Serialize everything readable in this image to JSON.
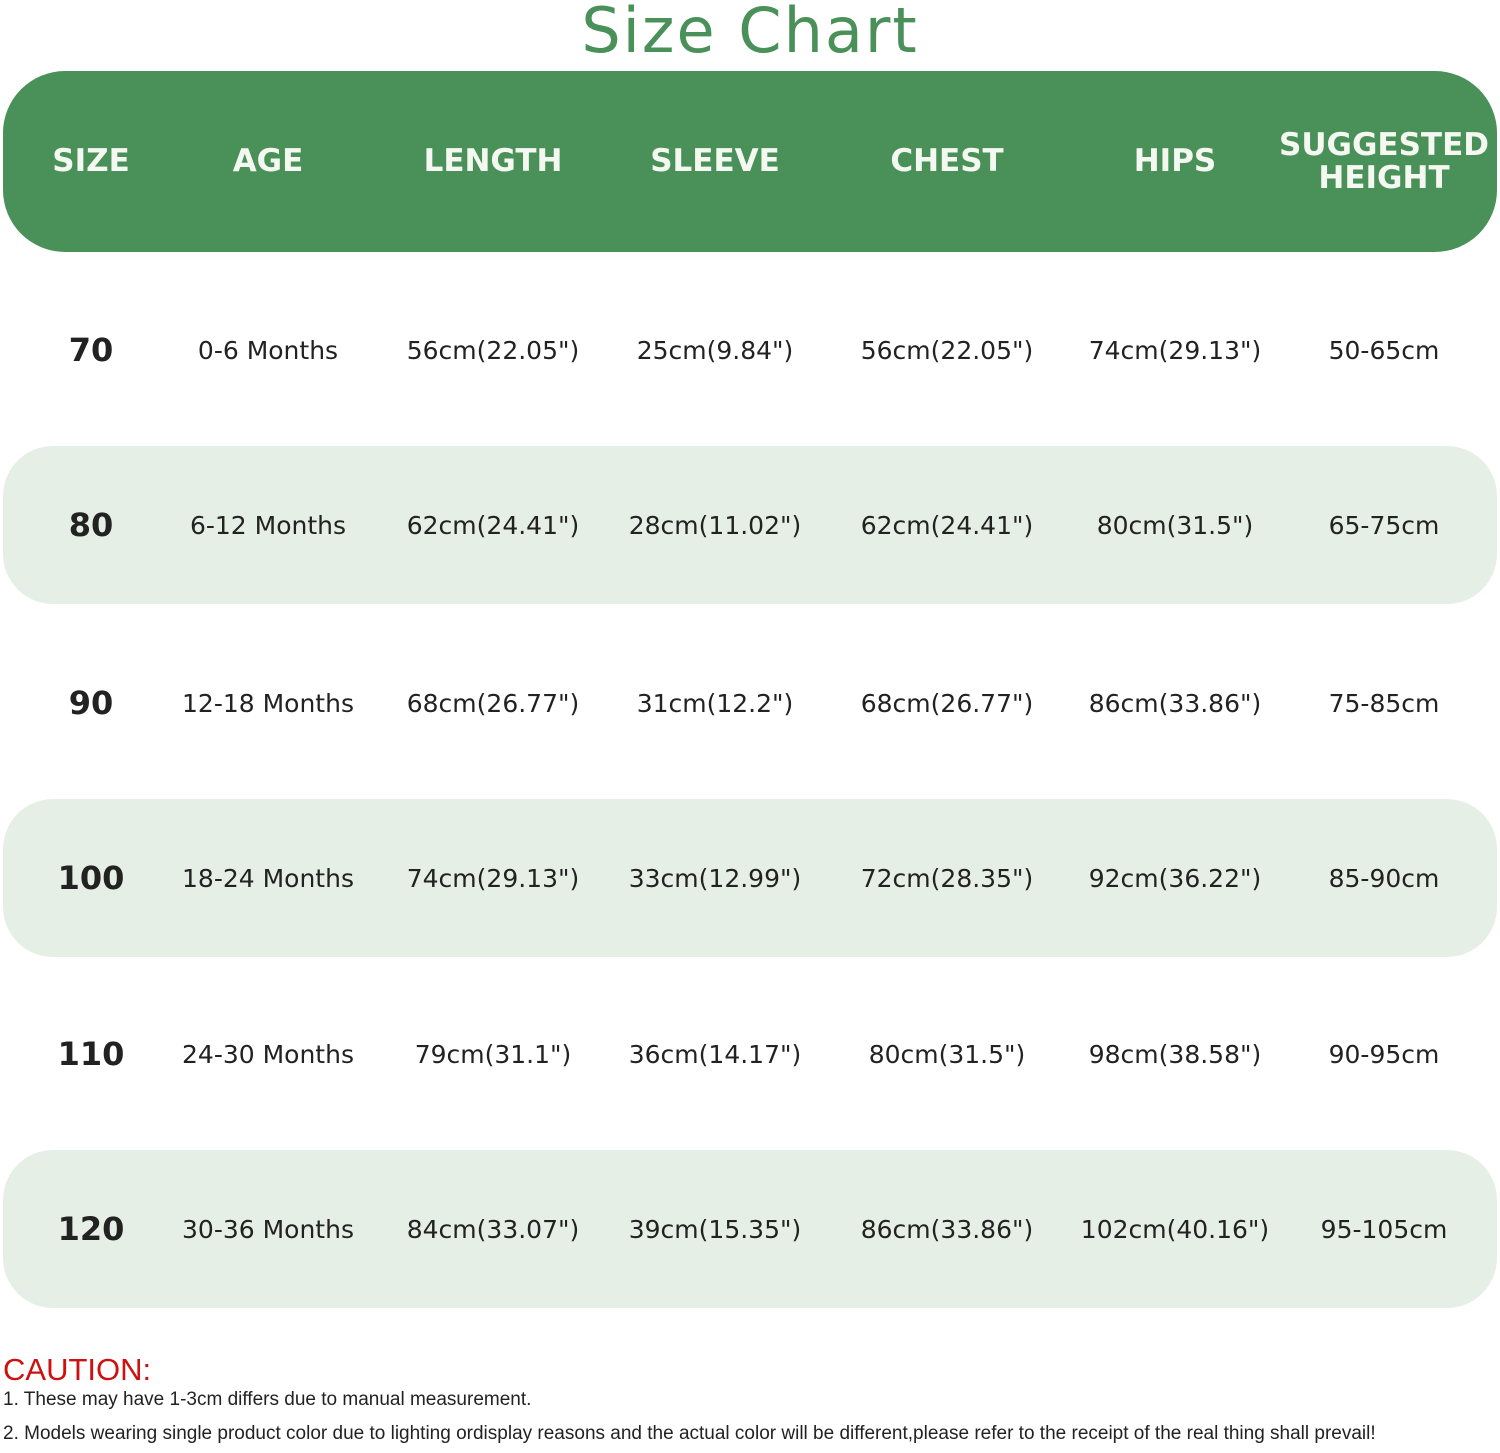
{
  "title": "Size Chart",
  "colors": {
    "accent": "#4a9159",
    "row_shade": "#e6efe6",
    "caution": "#cc1111"
  },
  "headers": [
    "SIZE",
    "AGE",
    "LENGTH",
    "SLEEVE",
    "CHEST",
    "HIPS",
    "SUGGESTED HEIGHT"
  ],
  "rows": [
    [
      "70",
      "0-6 Months",
      "56cm(22.05\")",
      "25cm(9.84\")",
      "56cm(22.05\")",
      "74cm(29.13\")",
      "50-65cm"
    ],
    [
      "80",
      "6-12 Months",
      "62cm(24.41\")",
      "28cm(11.02\")",
      "62cm(24.41\")",
      "80cm(31.5\")",
      "65-75cm"
    ],
    [
      "90",
      "12-18 Months",
      "68cm(26.77\")",
      "31cm(12.2\")",
      "68cm(26.77\")",
      "86cm(33.86\")",
      "75-85cm"
    ],
    [
      "100",
      "18-24 Months",
      "74cm(29.13\")",
      "33cm(12.99\")",
      "72cm(28.35\")",
      "92cm(36.22\")",
      "85-90cm"
    ],
    [
      "110",
      "24-30 Months",
      "79cm(31.1\")",
      "36cm(14.17\")",
      "80cm(31.5\")",
      "98cm(38.58\")",
      "90-95cm"
    ],
    [
      "120",
      "30-36 Months",
      "84cm(33.07\")",
      "39cm(15.35\")",
      "86cm(33.86\")",
      "102cm(40.16\")",
      "95-105cm"
    ]
  ],
  "caution": {
    "label": "CAUTION:",
    "notes": [
      "1. These may have 1-3cm differs due to manual measurement.",
      "2. Models wearing single product color due to lighting ordisplay reasons and the actual color will be different,please refer to the receipt of the real thing shall prevail!"
    ]
  }
}
